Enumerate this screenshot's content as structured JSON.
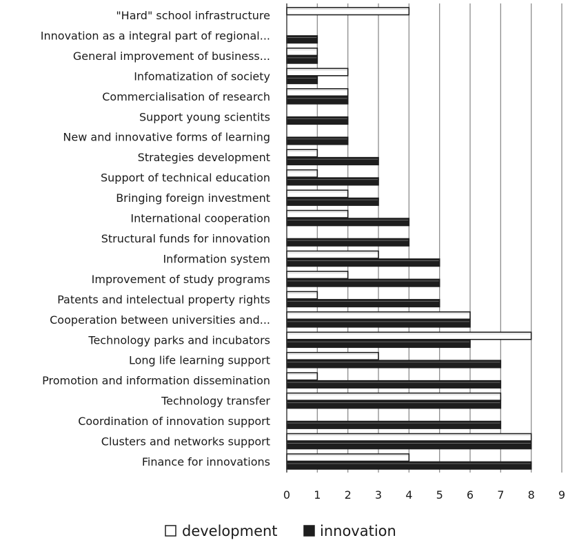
{
  "chart_data": {
    "type": "bar",
    "orientation": "horizontal",
    "title": "",
    "xlabel": "",
    "ylabel": "",
    "xlim": [
      0,
      9
    ],
    "x_ticks": [
      "0",
      "1",
      "2",
      "3",
      "4",
      "5",
      "6",
      "7",
      "8",
      "9"
    ],
    "grid": "vertical",
    "legend_position": "bottom",
    "categories": [
      "\"Hard\" school infrastructure",
      "Innovation as a integral part of regional...",
      "General improvement of business...",
      "Infomatization of society",
      "Commercialisation of research",
      "Support young scientits",
      "New and innovative forms of learning",
      "Strategies development",
      "Support of technical education",
      "Bringing foreign investment",
      "International cooperation",
      "Structural funds for innovation",
      "Information system",
      "Improvement  of study programs",
      "Patents and intelectual property rights",
      "Cooperation between universities and...",
      "Technology parks and incubators",
      "Long life learning support",
      "Promotion and information dissemination",
      "Technology transfer",
      "Coordination of innovation support",
      "Clusters and networks support",
      "Finance for innovations"
    ],
    "series": [
      {
        "name": "development",
        "color": "#ffffff",
        "values": [
          4,
          0,
          1,
          2,
          2,
          0,
          0,
          1,
          1,
          2,
          2,
          0,
          3,
          2,
          1,
          6,
          8,
          3,
          1,
          7,
          0,
          8,
          4
        ]
      },
      {
        "name": "innovation",
        "color": "#1e1e1e",
        "values": [
          0,
          1,
          1,
          1,
          2,
          2,
          2,
          3,
          3,
          3,
          4,
          4,
          5,
          5,
          5,
          6,
          6,
          7,
          7,
          7,
          7,
          8,
          8
        ]
      }
    ]
  }
}
